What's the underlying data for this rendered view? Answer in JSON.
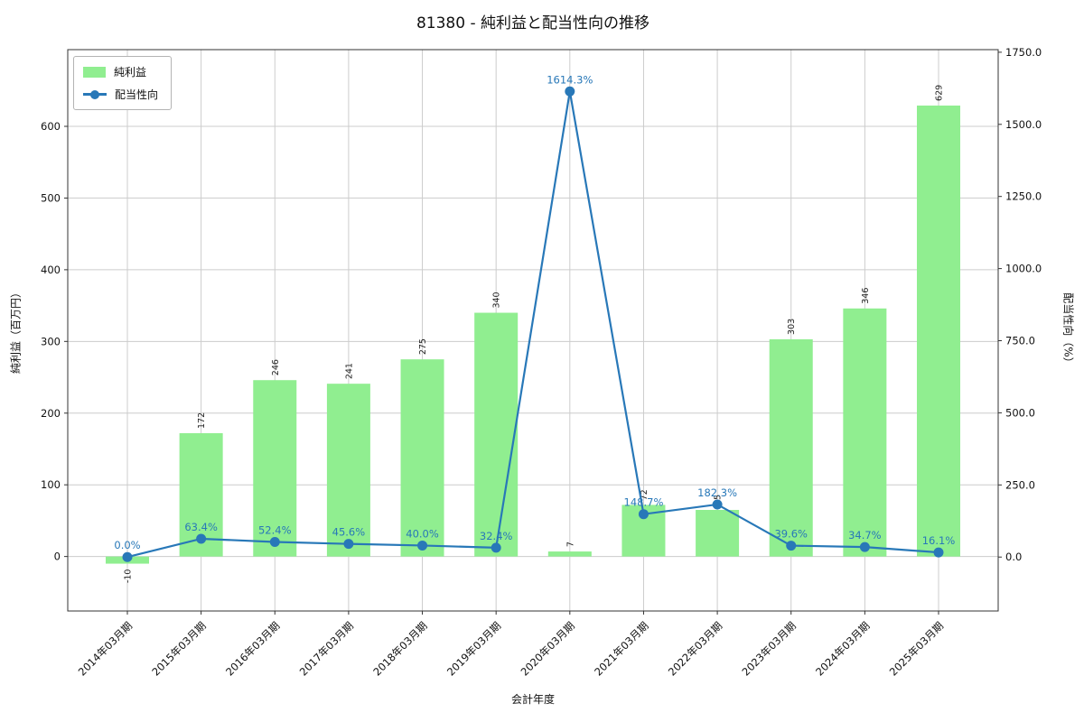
{
  "title": "81380 - 純利益と配当性向の推移",
  "axes": {
    "xlabel": "会計年度",
    "ylabel_left": "純利益（百万円）",
    "ylabel_right": "配当性向（%）"
  },
  "legend": {
    "bar_label": "純利益",
    "line_label": "配当性向"
  },
  "colors": {
    "bar": "#90ee90",
    "line": "#2878b8",
    "grid": "#cccccc",
    "axis": "#333333",
    "text": "#111111",
    "percent_label": "#2878b8",
    "bar_label": "#222222"
  },
  "chart_data": {
    "type": "bar",
    "subtype": "bar+line combo, dual y-axes",
    "categories": [
      "2014年03月期",
      "2015年03月期",
      "2016年03月期",
      "2017年03月期",
      "2018年03月期",
      "2019年03月期",
      "2020年03月期",
      "2021年03月期",
      "2022年03月期",
      "2023年03月期",
      "2024年03月期",
      "2025年03月期"
    ],
    "series": [
      {
        "name": "純利益",
        "type": "bar",
        "axis": "left",
        "unit": "百万円",
        "values": [
          -10,
          172,
          246,
          241,
          275,
          340,
          7,
          72,
          65,
          303,
          346,
          629
        ],
        "point_labels": [
          "-10",
          "172",
          "246",
          "241",
          "275",
          "340",
          "7",
          "72",
          "65",
          "303",
          "346",
          "629"
        ]
      },
      {
        "name": "配当性向",
        "type": "line",
        "axis": "right",
        "unit": "%",
        "values": [
          0.0,
          63.4,
          52.4,
          45.6,
          40.0,
          32.4,
          1614.3,
          148.7,
          182.3,
          39.6,
          34.7,
          16.1
        ],
        "point_labels": [
          "0.0%",
          "63.4%",
          "52.4%",
          "45.6%",
          "40.0%",
          "32.4%",
          "1614.3%",
          "148.7%",
          "182.3%",
          "39.6%",
          "34.7%",
          "16.1%"
        ]
      }
    ],
    "left_axis": {
      "ticks": [
        0,
        100,
        200,
        300,
        400,
        500,
        600
      ],
      "tick_labels": [
        "0",
        "100",
        "200",
        "300",
        "400",
        "500",
        "600"
      ],
      "range": [
        -76,
        707
      ]
    },
    "right_axis": {
      "ticks": [
        0,
        250,
        500,
        750,
        1000,
        1250,
        1500,
        1750
      ],
      "tick_labels": [
        "0.0",
        "250.0",
        "500.0",
        "750.0",
        "1000.0",
        "1250.0",
        "1500.0",
        "1750.0"
      ],
      "range": [
        -187,
        1759
      ]
    },
    "grid": true,
    "legend_position": "upper left"
  }
}
